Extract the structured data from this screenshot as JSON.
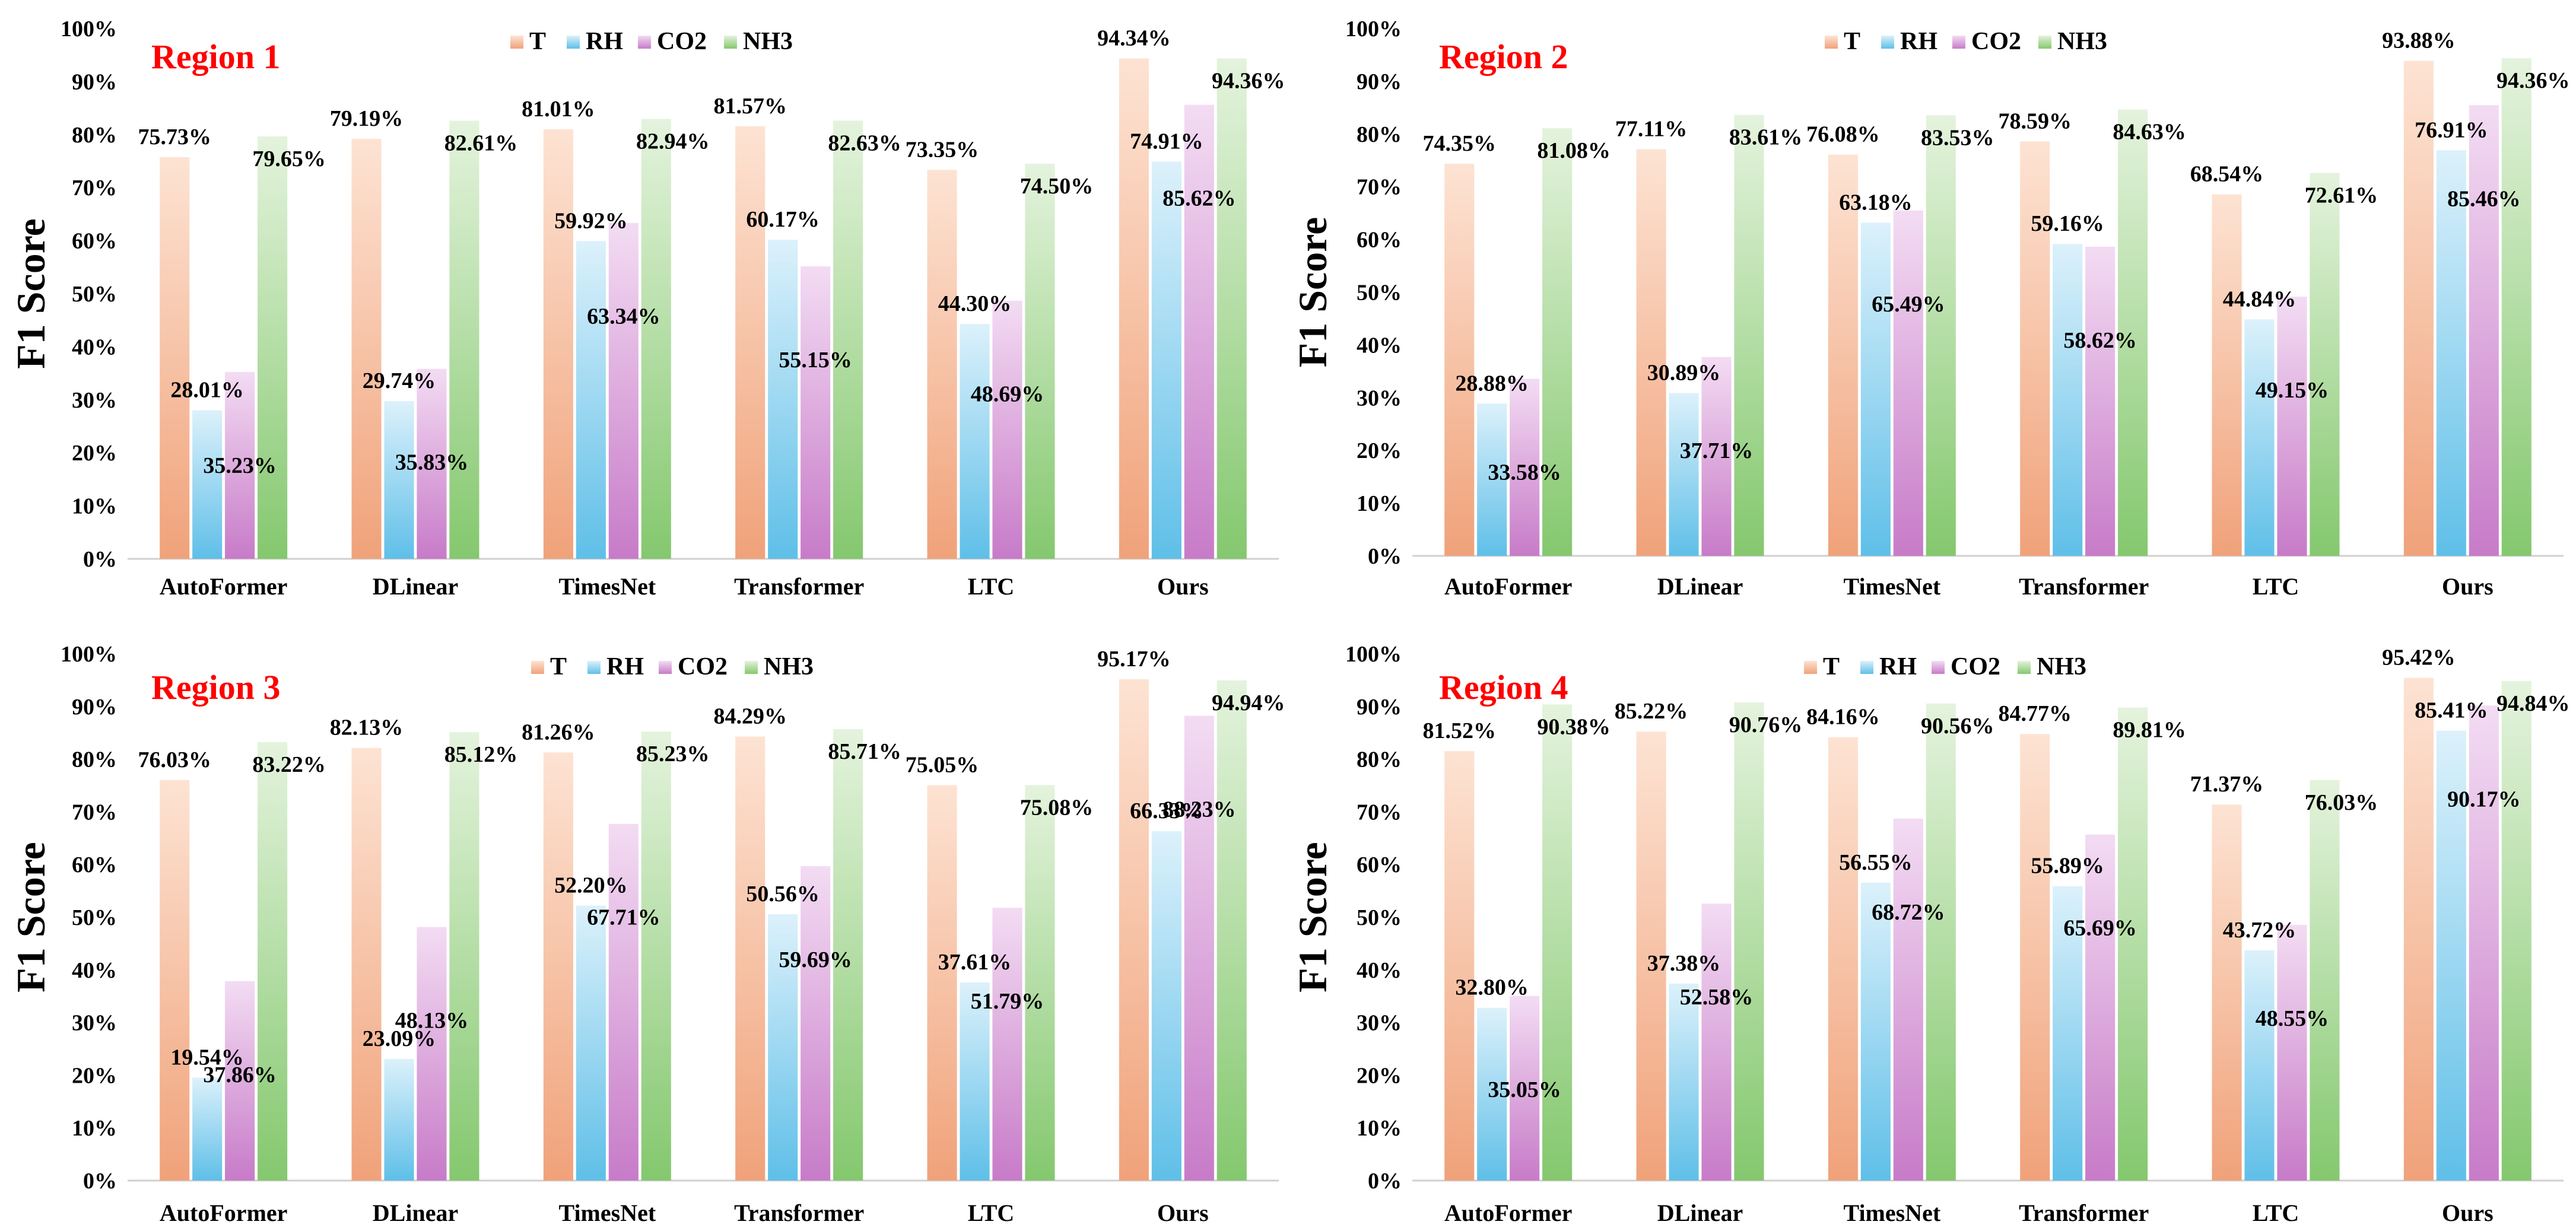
{
  "colors": {
    "T": [
      "#f0a27a",
      "#fde3d3"
    ],
    "RH": [
      "#5fbfe8",
      "#dcf1fb"
    ],
    "CO2": [
      "#c77bc8",
      "#f3dcf3"
    ],
    "NH3": [
      "#84c86e",
      "#e4f3dd"
    ],
    "region_title": "#ff0000"
  },
  "chart_data": [
    {
      "type": "bar",
      "title": "Region 1",
      "ylabel": "F1 Score",
      "xlabel": "",
      "ylim": [
        0,
        100
      ],
      "yticks": [
        "0%",
        "10%",
        "20%",
        "30%",
        "40%",
        "50%",
        "60%",
        "70%",
        "80%",
        "90%",
        "100%"
      ],
      "categories": [
        "AutoFormer",
        "DLinear",
        "TimesNet",
        "Transformer",
        "LTC",
        "Ours"
      ],
      "series": [
        {
          "name": "T",
          "values": [
            75.73,
            79.19,
            81.01,
            81.57,
            73.35,
            94.34
          ],
          "labels": [
            "75.73%",
            "79.19%",
            "81.01%",
            "81.57%",
            "73.35%",
            "94.34%"
          ]
        },
        {
          "name": "RH",
          "values": [
            28.01,
            29.74,
            59.92,
            60.17,
            44.3,
            74.91
          ],
          "labels": [
            "28.01%",
            "29.74%",
            "59.92%",
            "60.17%",
            "44.30%",
            "74.91%"
          ]
        },
        {
          "name": "CO2",
          "values": [
            35.23,
            35.83,
            63.34,
            55.15,
            48.69,
            85.62
          ],
          "labels": [
            "35.23%",
            "35.83%",
            "63.34%",
            "55.15%",
            "48.69%",
            "85.62%"
          ]
        },
        {
          "name": "NH3",
          "values": [
            79.65,
            82.61,
            82.94,
            82.63,
            74.5,
            94.36
          ],
          "labels": [
            "79.65%",
            "82.61%",
            "82.94%",
            "82.63%",
            "74.50%",
            "94.36%"
          ]
        }
      ],
      "legend": [
        "T",
        "RH",
        "CO2",
        "NH3"
      ]
    },
    {
      "type": "bar",
      "title": "Region 2",
      "ylabel": "F1 Score",
      "xlabel": "",
      "ylim": [
        0,
        100
      ],
      "yticks": [
        "0%",
        "10%",
        "20%",
        "30%",
        "40%",
        "50%",
        "60%",
        "70%",
        "80%",
        "90%",
        "100%"
      ],
      "categories": [
        "AutoFormer",
        "DLinear",
        "TimesNet",
        "Transformer",
        "LTC",
        "Ours"
      ],
      "series": [
        {
          "name": "T",
          "values": [
            74.35,
            77.11,
            76.08,
            78.59,
            68.54,
            93.88
          ],
          "labels": [
            "74.35%",
            "77.11%",
            "76.08%",
            "78.59%",
            "68.54%",
            "93.88%"
          ]
        },
        {
          "name": "RH",
          "values": [
            28.88,
            30.89,
            63.18,
            59.16,
            44.84,
            76.91
          ],
          "labels": [
            "28.88%",
            "30.89%",
            "63.18%",
            "59.16%",
            "44.84%",
            "76.91%"
          ]
        },
        {
          "name": "CO2",
          "values": [
            33.58,
            37.71,
            65.49,
            58.62,
            49.15,
            85.46
          ],
          "labels": [
            "33.58%",
            "37.71%",
            "65.49%",
            "58.62%",
            "49.15%",
            "85.46%"
          ]
        },
        {
          "name": "NH3",
          "values": [
            81.08,
            83.61,
            83.53,
            84.63,
            72.61,
            94.36
          ],
          "labels": [
            "81.08%",
            "83.61%",
            "83.53%",
            "84.63%",
            "72.61%",
            "94.36%"
          ]
        }
      ],
      "legend": [
        "T",
        "RH",
        "CO2",
        "NH3"
      ]
    },
    {
      "type": "bar",
      "title": "Region 3",
      "ylabel": "F1 Score",
      "xlabel": "",
      "ylim": [
        0,
        100
      ],
      "yticks": [
        "0%",
        "10%",
        "20%",
        "30%",
        "40%",
        "50%",
        "60%",
        "70%",
        "80%",
        "90%",
        "100%"
      ],
      "categories": [
        "AutoFormer",
        "DLinear",
        "TimesNet",
        "Transformer",
        "LTC",
        "Ours"
      ],
      "series": [
        {
          "name": "T",
          "values": [
            76.03,
            82.13,
            81.26,
            84.29,
            75.05,
            95.17
          ],
          "labels": [
            "76.03%",
            "82.13%",
            "81.26%",
            "84.29%",
            "75.05%",
            "95.17%"
          ]
        },
        {
          "name": "RH",
          "values": [
            19.54,
            23.09,
            52.2,
            50.56,
            37.61,
            66.33
          ],
          "labels": [
            "19.54%",
            "23.09%",
            "52.20%",
            "50.56%",
            "37.61%",
            "66.33%"
          ]
        },
        {
          "name": "CO2",
          "values": [
            37.86,
            48.13,
            67.71,
            59.69,
            51.79,
            88.23
          ],
          "labels": [
            "37.86%",
            "48.13%",
            "67.71%",
            "59.69%",
            "51.79%",
            "88.23%"
          ]
        },
        {
          "name": "NH3",
          "values": [
            83.22,
            85.12,
            85.23,
            85.71,
            75.08,
            94.94
          ],
          "labels": [
            "83.22%",
            "85.12%",
            "85.23%",
            "85.71%",
            "75.08%",
            "94.94%"
          ]
        }
      ],
      "legend": [
        "T",
        "RH",
        "CO2",
        "NH3"
      ]
    },
    {
      "type": "bar",
      "title": "Region 4",
      "ylabel": "F1 Score",
      "xlabel": "",
      "ylim": [
        0,
        100
      ],
      "yticks": [
        "0%",
        "10%",
        "20%",
        "30%",
        "40%",
        "50%",
        "60%",
        "70%",
        "80%",
        "90%",
        "100%"
      ],
      "categories": [
        "AutoFormer",
        "DLinear",
        "TimesNet",
        "Transformer",
        "LTC",
        "Ours"
      ],
      "series": [
        {
          "name": "T",
          "values": [
            81.52,
            85.22,
            84.16,
            84.77,
            71.37,
            95.42
          ],
          "labels": [
            "81.52%",
            "85.22%",
            "84.16%",
            "84.77%",
            "71.37%",
            "95.42%"
          ]
        },
        {
          "name": "RH",
          "values": [
            32.8,
            37.38,
            56.55,
            55.89,
            43.72,
            85.41
          ],
          "labels": [
            "32.80%",
            "37.38%",
            "56.55%",
            "55.89%",
            "43.72%",
            "85.41%"
          ]
        },
        {
          "name": "CO2",
          "values": [
            35.05,
            52.58,
            68.72,
            65.69,
            48.55,
            90.17
          ],
          "labels": [
            "35.05%",
            "52.58%",
            "68.72%",
            "65.69%",
            "48.55%",
            "90.17%"
          ]
        },
        {
          "name": "NH3",
          "values": [
            90.38,
            90.76,
            90.56,
            89.81,
            76.03,
            94.84
          ],
          "labels": [
            "90.38%",
            "90.76%",
            "90.56%",
            "89.81%",
            "76.03%",
            "94.84%"
          ]
        }
      ],
      "legend": [
        "T",
        "RH",
        "CO2",
        "NH3"
      ]
    }
  ]
}
